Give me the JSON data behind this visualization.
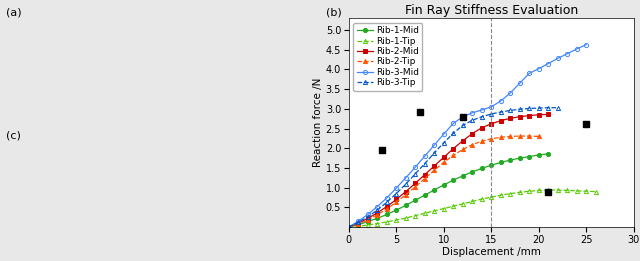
{
  "title": "Fin Ray Stiffness Evaluation",
  "xlabel": "Displacement /mm",
  "ylabel": "Reaction force /N",
  "xlim": [
    0,
    30
  ],
  "ylim": [
    0,
    5.3
  ],
  "xticks": [
    0,
    5,
    10,
    15,
    20,
    25,
    30
  ],
  "yticks": [
    0.5,
    1.0,
    1.5,
    2.0,
    2.5,
    3.0,
    3.5,
    4.0,
    4.5,
    5.0
  ],
  "dashed_vline": 15,
  "series": [
    {
      "label": "Rib-1-Mid",
      "color": "#22aa22",
      "linestyle": "-",
      "marker": "o",
      "marker_filled": true,
      "x": [
        0,
        1,
        2,
        3,
        4,
        5,
        6,
        7,
        8,
        9,
        10,
        11,
        12,
        13,
        14,
        15,
        16,
        17,
        18,
        19,
        20,
        21
      ],
      "y": [
        0,
        0.06,
        0.14,
        0.22,
        0.32,
        0.43,
        0.55,
        0.68,
        0.81,
        0.94,
        1.07,
        1.19,
        1.3,
        1.4,
        1.49,
        1.57,
        1.64,
        1.7,
        1.75,
        1.79,
        1.83,
        1.86
      ]
    },
    {
      "label": "Rib-1-Tip",
      "color": "#55cc00",
      "linestyle": "--",
      "marker": "^",
      "marker_filled": false,
      "x": [
        0,
        1,
        2,
        3,
        4,
        5,
        6,
        7,
        8,
        9,
        10,
        11,
        12,
        13,
        14,
        15,
        16,
        17,
        18,
        19,
        20,
        21,
        22,
        23,
        24,
        25,
        26
      ],
      "y": [
        0,
        0.02,
        0.05,
        0.09,
        0.13,
        0.18,
        0.23,
        0.29,
        0.35,
        0.41,
        0.47,
        0.53,
        0.59,
        0.65,
        0.71,
        0.76,
        0.81,
        0.85,
        0.88,
        0.91,
        0.93,
        0.94,
        0.94,
        0.93,
        0.92,
        0.91,
        0.9
      ]
    },
    {
      "label": "Rib-2-Mid",
      "color": "#cc0000",
      "linestyle": "-",
      "marker": "s",
      "marker_filled": true,
      "x": [
        0,
        1,
        2,
        3,
        4,
        5,
        6,
        7,
        8,
        9,
        10,
        11,
        12,
        13,
        14,
        15,
        16,
        17,
        18,
        19,
        20,
        21
      ],
      "y": [
        0,
        0.1,
        0.22,
        0.36,
        0.52,
        0.7,
        0.9,
        1.11,
        1.33,
        1.55,
        1.77,
        1.99,
        2.19,
        2.37,
        2.52,
        2.62,
        2.7,
        2.76,
        2.8,
        2.83,
        2.85,
        2.86
      ]
    },
    {
      "label": "Rib-2-Tip",
      "color": "#ff5500",
      "linestyle": "--",
      "marker": "^",
      "marker_filled": true,
      "x": [
        0,
        1,
        2,
        3,
        4,
        5,
        6,
        7,
        8,
        9,
        10,
        11,
        12,
        13,
        14,
        15,
        16,
        17,
        18,
        19,
        20
      ],
      "y": [
        0,
        0.08,
        0.18,
        0.31,
        0.46,
        0.63,
        0.82,
        1.02,
        1.23,
        1.44,
        1.64,
        1.82,
        1.97,
        2.09,
        2.18,
        2.24,
        2.28,
        2.3,
        2.31,
        2.31,
        2.3
      ]
    },
    {
      "label": "Rib-3-Mid",
      "color": "#4488ff",
      "linestyle": "-",
      "marker": "o",
      "marker_filled": false,
      "x": [
        0,
        1,
        2,
        3,
        4,
        5,
        6,
        7,
        8,
        9,
        10,
        11,
        12,
        13,
        14,
        15,
        16,
        17,
        18,
        19,
        20,
        21,
        22,
        23,
        24,
        25
      ],
      "y": [
        0,
        0.15,
        0.32,
        0.52,
        0.74,
        0.99,
        1.25,
        1.52,
        1.8,
        2.08,
        2.36,
        2.63,
        2.8,
        2.9,
        2.97,
        3.05,
        3.2,
        3.4,
        3.65,
        3.9,
        4.02,
        4.15,
        4.28,
        4.4,
        4.52,
        4.63
      ]
    },
    {
      "label": "Rib-3-Tip",
      "color": "#0055cc",
      "linestyle": "--",
      "marker": "^",
      "marker_filled": false,
      "x": [
        0,
        1,
        2,
        3,
        4,
        5,
        6,
        7,
        8,
        9,
        10,
        11,
        12,
        13,
        14,
        15,
        16,
        17,
        18,
        19,
        20,
        21,
        22
      ],
      "y": [
        0,
        0.12,
        0.26,
        0.43,
        0.63,
        0.85,
        1.09,
        1.35,
        1.61,
        1.88,
        2.14,
        2.38,
        2.58,
        2.71,
        2.8,
        2.87,
        2.92,
        2.96,
        2.99,
        3.01,
        3.02,
        3.03,
        3.03
      ]
    }
  ],
  "black_pts": [
    [
      3.5,
      1.95
    ],
    [
      7.5,
      2.92
    ],
    [
      12.0,
      2.8
    ],
    [
      21.0,
      0.9
    ],
    [
      25.0,
      2.62
    ]
  ],
  "bg_color": "#ffffff",
  "fig_bg": "#e8e8e8",
  "title_fontsize": 9,
  "label_fontsize": 7.5,
  "tick_fontsize": 7,
  "legend_fontsize": 6.5
}
